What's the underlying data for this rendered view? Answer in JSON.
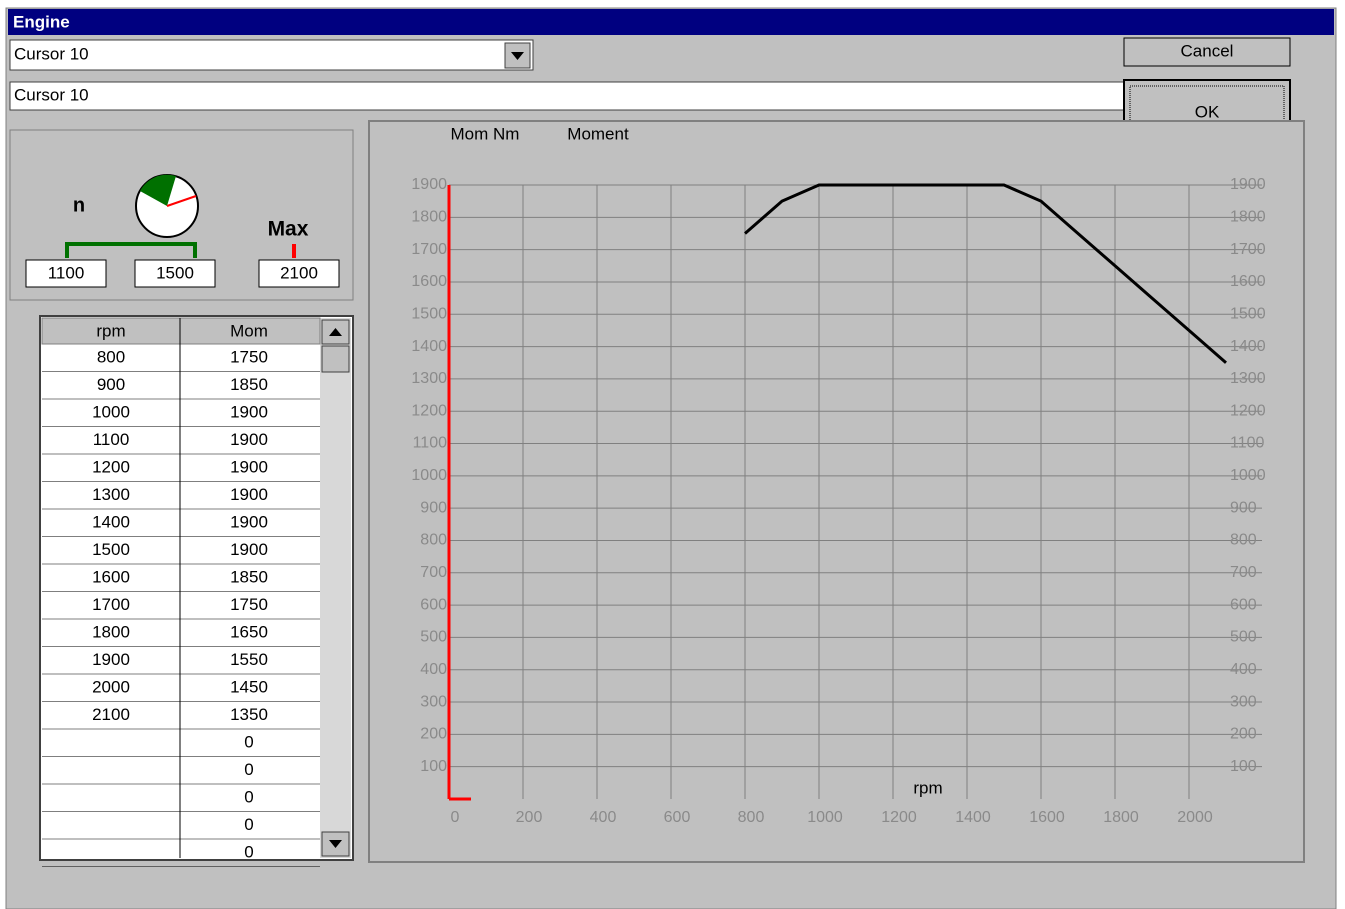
{
  "window": {
    "title": "Engine"
  },
  "combo": {
    "value": "Cursor 10"
  },
  "name_field": {
    "value": "Cursor 10"
  },
  "buttons": {
    "cancel": "Cancel",
    "ok": "OK"
  },
  "range": {
    "n_label": "n",
    "max_label": "Max",
    "n_from": 1100,
    "n_to": 1500,
    "max": 2100
  },
  "table": {
    "columns": [
      "rpm",
      "Mom"
    ],
    "rows": [
      [
        800,
        1750
      ],
      [
        900,
        1850
      ],
      [
        1000,
        1900
      ],
      [
        1100,
        1900
      ],
      [
        1200,
        1900
      ],
      [
        1300,
        1900
      ],
      [
        1400,
        1900
      ],
      [
        1500,
        1900
      ],
      [
        1600,
        1850
      ],
      [
        1700,
        1750
      ],
      [
        1800,
        1650
      ],
      [
        1900,
        1550
      ],
      [
        2000,
        1450
      ],
      [
        2100,
        1350
      ],
      [
        null,
        0
      ],
      [
        null,
        0
      ],
      [
        null,
        0
      ],
      [
        null,
        0
      ],
      [
        null,
        0
      ]
    ]
  },
  "chart_data": {
    "type": "line",
    "y_label": "Mom Nm",
    "x_label": "rpm",
    "x": [
      800,
      900,
      1000,
      1100,
      1200,
      1300,
      1400,
      1500,
      1600,
      1700,
      1800,
      1900,
      2000,
      2100
    ],
    "series": [
      {
        "name": "Moment",
        "color": "#000000",
        "values": [
          1750,
          1850,
          1900,
          1900,
          1900,
          1900,
          1900,
          1900,
          1850,
          1750,
          1650,
          1550,
          1450,
          1350
        ]
      }
    ],
    "xlim": [
      0,
      2100
    ],
    "ylim": [
      0,
      1900
    ],
    "y2lim": [
      0,
      1900
    ],
    "xticks": [
      0,
      200,
      400,
      600,
      800,
      1000,
      1200,
      1400,
      1600,
      1800,
      2000
    ],
    "yticks": [
      100,
      200,
      300,
      400,
      500,
      600,
      700,
      800,
      900,
      1000,
      1100,
      1200,
      1300,
      1400,
      1500,
      1600,
      1700,
      1800,
      1900
    ],
    "y2ticks": [
      100,
      200,
      300,
      400,
      500,
      600,
      700,
      800,
      900,
      1000,
      1100,
      1200,
      1300,
      1400,
      1500,
      1600,
      1700,
      1800,
      1900
    ],
    "grid": true,
    "axis_color": "#ff0000"
  }
}
